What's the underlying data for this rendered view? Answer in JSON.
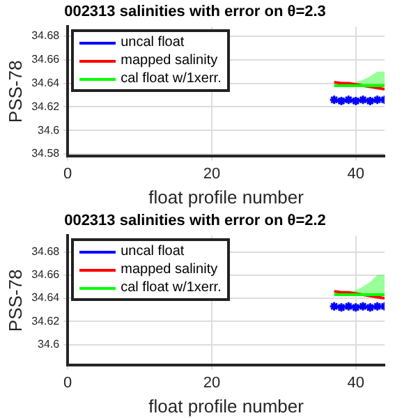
{
  "chart_data": [
    {
      "type": "line",
      "title": "002313 salinities with error on θ=2.3",
      "xlabel": "float profile number",
      "ylabel": "PSS-78",
      "x": [
        37,
        38,
        39,
        40,
        41,
        42,
        43,
        44
      ],
      "xlim": [
        0,
        44
      ],
      "xticks": [
        0,
        20,
        40
      ],
      "ylim": [
        34.578,
        34.688
      ],
      "yticks": [
        34.58,
        34.6,
        34.62,
        34.64,
        34.66,
        34.68
      ],
      "grid": true,
      "legend": "top left",
      "series": [
        {
          "name": "uncal float",
          "color": "#0000ff",
          "marker": "cross",
          "values": [
            34.626,
            34.625,
            34.626,
            34.625,
            34.626,
            34.625,
            34.626,
            34.626
          ]
        },
        {
          "name": "mapped salinity",
          "color": "#ff0000",
          "marker": "none",
          "values": [
            34.641,
            34.64,
            34.64,
            34.639,
            34.638,
            34.637,
            34.636,
            34.635
          ]
        },
        {
          "name": "cal float w/1xerr.",
          "color": "#00ff00",
          "marker": "none",
          "values": [
            34.638,
            34.638,
            34.638,
            34.638,
            34.638,
            34.638,
            34.638,
            34.638
          ],
          "lower": [
            34.637,
            34.637,
            34.637,
            34.637,
            34.637,
            34.637,
            34.637,
            34.637
          ],
          "upper": [
            34.64,
            34.64,
            34.64,
            34.641,
            34.643,
            34.646,
            34.65,
            34.65
          ]
        }
      ]
    },
    {
      "type": "line",
      "title": "002313 salinities with error on θ=2.2",
      "xlabel": "float profile number",
      "ylabel": "PSS-78",
      "x": [
        37,
        38,
        39,
        40,
        41,
        42,
        43,
        44
      ],
      "xlim": [
        0,
        44
      ],
      "xticks": [
        0,
        20,
        40
      ],
      "ylim": [
        34.582,
        34.694
      ],
      "yticks": [
        34.6,
        34.62,
        34.64,
        34.66,
        34.68
      ],
      "grid": true,
      "legend": "top left",
      "series": [
        {
          "name": "uncal float",
          "color": "#0000ff",
          "marker": "cross",
          "values": [
            34.633,
            34.632,
            34.633,
            34.632,
            34.633,
            34.632,
            34.633,
            34.633
          ]
        },
        {
          "name": "mapped salinity",
          "color": "#ff0000",
          "marker": "none",
          "values": [
            34.646,
            34.645,
            34.645,
            34.644,
            34.643,
            34.642,
            34.641,
            34.64
          ]
        },
        {
          "name": "cal float w/1xerr.",
          "color": "#00ff00",
          "marker": "none",
          "values": [
            34.643,
            34.643,
            34.643,
            34.643,
            34.643,
            34.643,
            34.643,
            34.643
          ],
          "lower": [
            34.642,
            34.642,
            34.642,
            34.642,
            34.642,
            34.642,
            34.642,
            34.642
          ],
          "upper": [
            34.645,
            34.645,
            34.645,
            34.647,
            34.65,
            34.654,
            34.66,
            34.66
          ]
        }
      ]
    }
  ]
}
